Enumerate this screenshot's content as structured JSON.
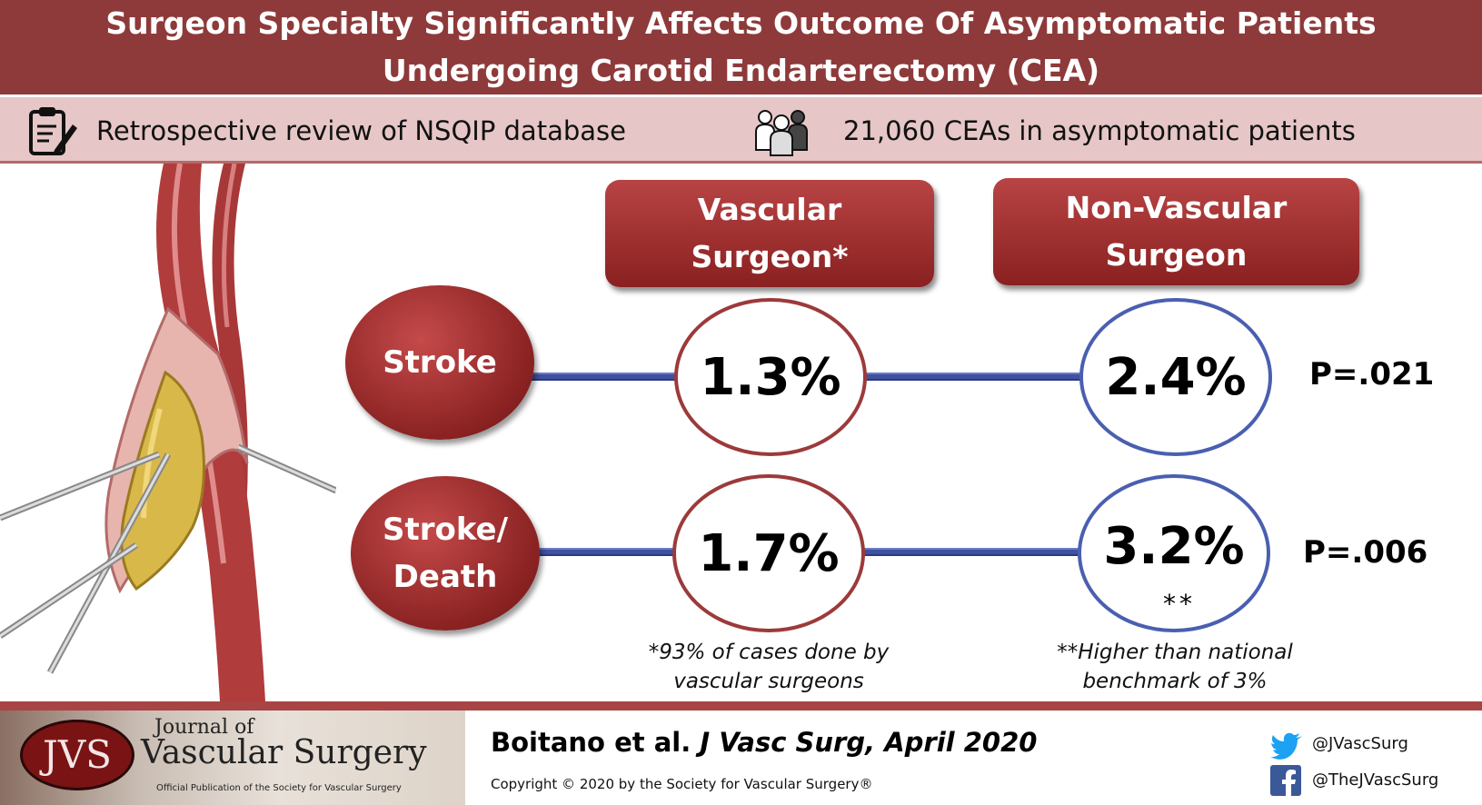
{
  "title": {
    "line1": "Surgeon Specialty Significantly Affects Outcome Of Asymptomatic Patients",
    "line2": "Undergoing Carotid Endarterectomy (CEA)"
  },
  "info": {
    "study_design": "Retrospective review of NSQIP database",
    "sample": "21,060 CEAs in asymptomatic patients",
    "study_icon": "clipboard-pencil-icon",
    "sample_icon": "people-group-icon"
  },
  "columns": {
    "vascular": {
      "line1": "Vascular",
      "line2": "Surgeon*"
    },
    "non_vascular": {
      "line1": "Non-Vascular",
      "line2": "Surgeon"
    }
  },
  "outcomes": [
    {
      "label_line1": "Stroke",
      "label_line2": "",
      "vascular": "1.3%",
      "non_vascular": "2.4%",
      "p_value": "P=.021",
      "marker": ""
    },
    {
      "label_line1": "Stroke/",
      "label_line2": "Death",
      "vascular": "1.7%",
      "non_vascular": "3.2%",
      "p_value": "P=.006",
      "marker": "**"
    }
  ],
  "footnotes": {
    "vascular_line1": "*93% of cases done by",
    "vascular_line2": "vascular surgeons",
    "non_vascular_line1": "**Higher than national",
    "non_vascular_line2": "benchmark of 3%"
  },
  "footer": {
    "logo_abbrev": "JVS",
    "journal_small": "Journal of",
    "journal_big": "Vascular Surgery",
    "journal_sub": "Official Publication of the Society for Vascular Surgery",
    "citation_authors": "Boitano et al.",
    "citation_journal": "J Vasc Surg, April 2020",
    "copyright": "Copyright © 2020 by the Society for Vascular Surgery®",
    "twitter": "@JVascSurg",
    "facebook": "@TheJVascSurg"
  },
  "colors": {
    "brand_red": "#8e3a3a",
    "info_pink": "#e6c6c6",
    "vascular_ring": "#9c3a3a",
    "non_vascular_ring": "#4a5fb0",
    "connector_blue": "#3f51a0"
  }
}
